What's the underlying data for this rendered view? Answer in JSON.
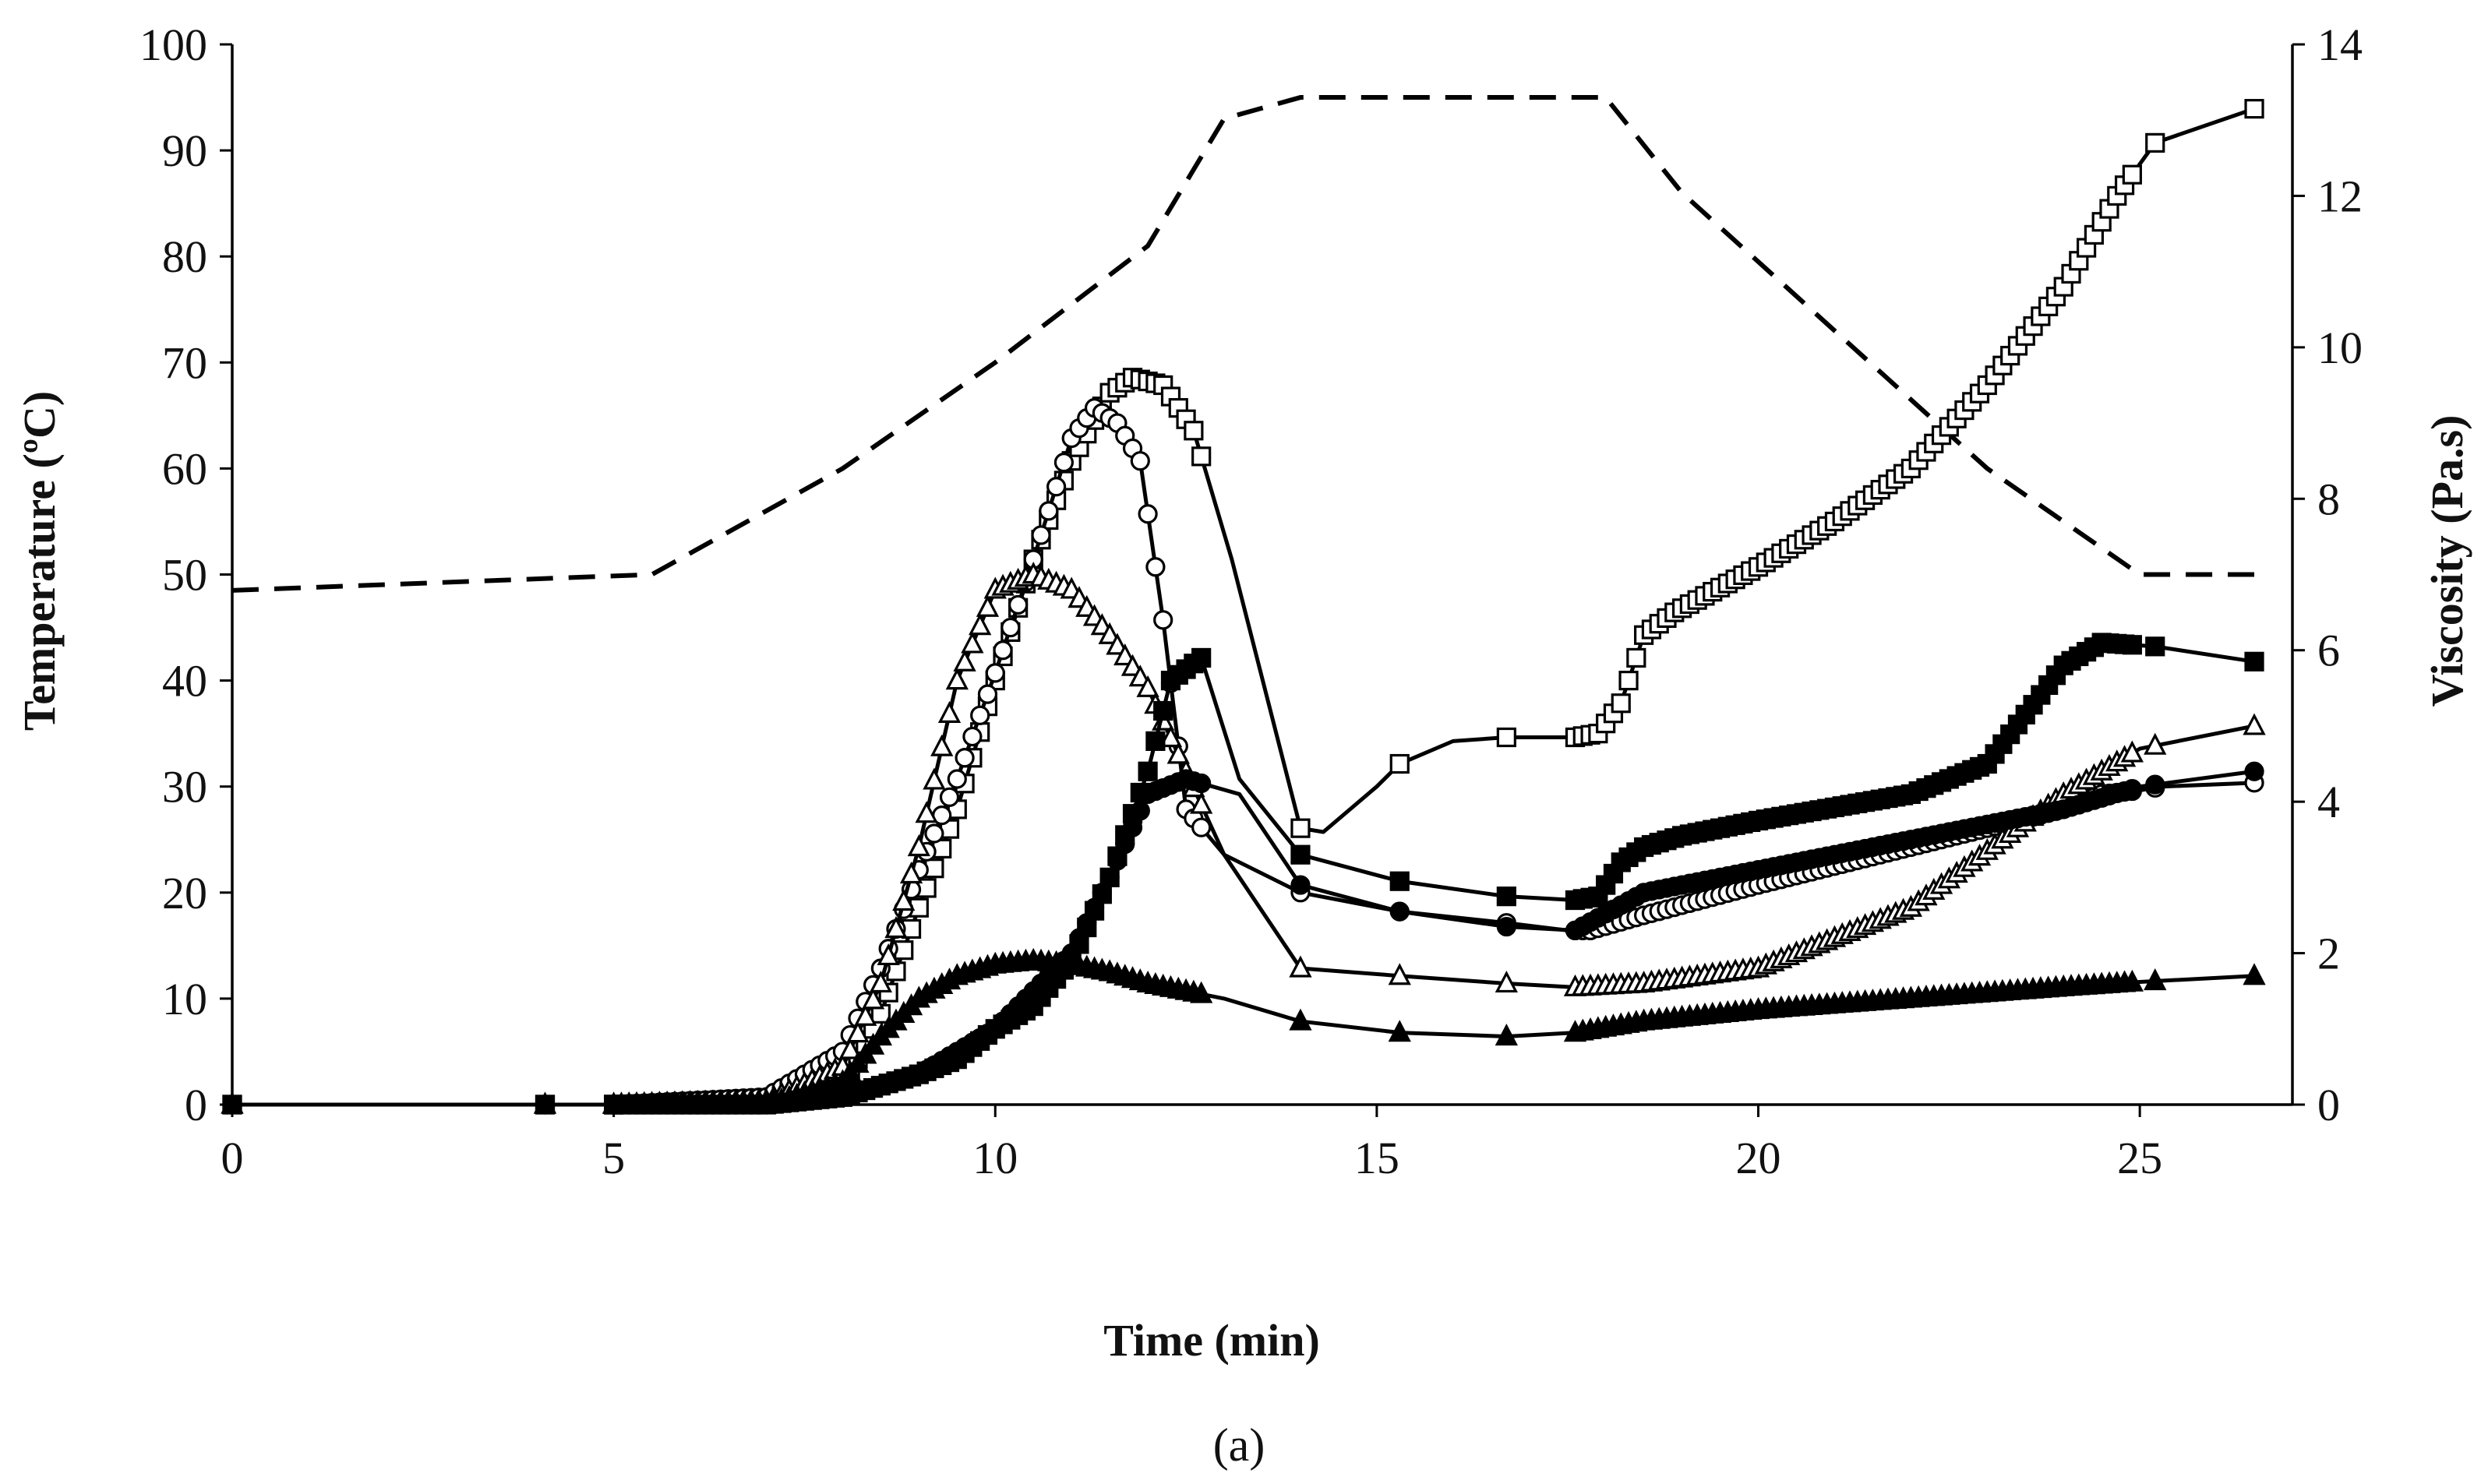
{
  "chart_data": {
    "type": "line",
    "panel_label": "(a)",
    "xlabel": "Time (min)",
    "ylabel_left": "Temperature (ºC)",
    "ylabel_right": "Viscosity (Pa.s)",
    "xlim": [
      0,
      27
    ],
    "ylim_left": [
      0,
      100
    ],
    "ylim_right": [
      0,
      14
    ],
    "x_ticks": [
      "0",
      "5",
      "10",
      "15",
      "20",
      "25"
    ],
    "y_left_ticks": [
      "0",
      "10",
      "20",
      "30",
      "40",
      "50",
      "60",
      "70",
      "80",
      "90",
      "100"
    ],
    "y_right_ticks": [
      "0",
      "2",
      "4",
      "6",
      "8",
      "10",
      "12",
      "14"
    ],
    "grid": false,
    "temperature": {
      "name": "Temperature",
      "axis": "left",
      "style": "dashed",
      "x": [
        0,
        5.5,
        8,
        10,
        12,
        13,
        14,
        16,
        18,
        19,
        21,
        23,
        25,
        26.5
      ],
      "y": [
        48.5,
        50,
        60,
        70,
        81,
        93,
        95,
        95,
        95,
        86,
        73,
        60,
        50,
        50
      ]
    },
    "series": [
      {
        "name": "open-square",
        "marker": "square-open",
        "axis": "right",
        "x": [
          0,
          5,
          7,
          8,
          8.5,
          9,
          9.5,
          10,
          10.5,
          11,
          11.5,
          11.8,
          12.2,
          12.6,
          13.1,
          14,
          14.3,
          15,
          15.3,
          16,
          16.7,
          17.6,
          17.9,
          18.2,
          18.5,
          18.9,
          20,
          21,
          22,
          23,
          24,
          24.7,
          25.2,
          26.5
        ],
        "y": [
          0,
          0,
          0.05,
          0.2,
          1.2,
          2.6,
          3.9,
          5.6,
          7.2,
          8.5,
          9.4,
          9.6,
          9.5,
          8.9,
          7.2,
          3.65,
          3.6,
          4.2,
          4.5,
          4.8,
          4.85,
          4.85,
          4.9,
          5.3,
          6.2,
          6.5,
          7.1,
          7.7,
          8.4,
          9.5,
          10.8,
          12.0,
          12.7,
          13.15
        ]
      },
      {
        "name": "open-circle",
        "marker": "circle-open",
        "axis": "right",
        "x": [
          0,
          5,
          7,
          8,
          8.5,
          9,
          9.5,
          10,
          10.5,
          11,
          11.3,
          11.6,
          11.9,
          12.2,
          12.5,
          13,
          14,
          15.3,
          16.7,
          17.5,
          17.8,
          18.5,
          20,
          22,
          24,
          24.5,
          25,
          25.3,
          26.5
        ],
        "y": [
          0,
          0,
          0.1,
          0.7,
          1.8,
          3.1,
          4.3,
          5.7,
          7.2,
          8.8,
          9.2,
          9.0,
          8.5,
          6.4,
          3.9,
          3.3,
          2.8,
          2.55,
          2.4,
          2.3,
          2.3,
          2.5,
          2.9,
          3.4,
          3.9,
          4.1,
          4.15,
          4.2,
          4.25
        ]
      },
      {
        "name": "open-triangle",
        "marker": "triangle-open",
        "axis": "right",
        "x": [
          0,
          5,
          7,
          8,
          8.5,
          9,
          9.5,
          10,
          10.5,
          11,
          11.5,
          12,
          12.5,
          13,
          14,
          15.3,
          16.7,
          17.6,
          18.5,
          20,
          22,
          24,
          25,
          26.5
        ],
        "y": [
          0,
          0,
          0.05,
          0.5,
          1.6,
          3.4,
          5.6,
          6.8,
          7.0,
          6.8,
          6.2,
          5.5,
          4.4,
          3.3,
          1.8,
          1.7,
          1.6,
          1.55,
          1.6,
          1.8,
          2.6,
          4.1,
          4.7,
          5.0
        ]
      },
      {
        "name": "filled-square",
        "marker": "square-filled",
        "axis": "right",
        "x": [
          0,
          5,
          7,
          8,
          9,
          9.5,
          10,
          10.5,
          11,
          11.5,
          12,
          12.3,
          12.7,
          13.2,
          14,
          15.3,
          16.7,
          17.6,
          17.9,
          18.2,
          18.5,
          19,
          20,
          22,
          23,
          24,
          24.5,
          25.2,
          26.5
        ],
        "y": [
          0,
          0,
          0,
          0.1,
          0.4,
          0.6,
          1.0,
          1.3,
          1.9,
          3.0,
          4.4,
          5.6,
          5.9,
          4.3,
          3.3,
          2.95,
          2.75,
          2.7,
          2.75,
          3.2,
          3.4,
          3.55,
          3.75,
          4.1,
          4.5,
          5.8,
          6.1,
          6.05,
          5.85
        ]
      },
      {
        "name": "filled-circle",
        "marker": "circle-filled",
        "axis": "right",
        "x": [
          0,
          5,
          7,
          8,
          9,
          10,
          11,
          11.5,
          12,
          12.5,
          13.2,
          14,
          15.3,
          16.7,
          17.6,
          18.5,
          20,
          22,
          24,
          25,
          26.5
        ],
        "y": [
          0,
          0,
          0,
          0.1,
          0.4,
          1.0,
          2.0,
          3.0,
          4.1,
          4.3,
          4.1,
          2.9,
          2.55,
          2.35,
          2.3,
          2.8,
          3.1,
          3.5,
          3.9,
          4.2,
          4.4
        ]
      },
      {
        "name": "filled-triangle",
        "marker": "triangle-filled",
        "axis": "right",
        "x": [
          0,
          5,
          7,
          8,
          8.5,
          9,
          9.5,
          10,
          10.5,
          11,
          11.5,
          12,
          13,
          14,
          15.3,
          16.7,
          17.6,
          18.5,
          20,
          22,
          24,
          25,
          26.5
        ],
        "y": [
          0,
          0,
          0,
          0.3,
          0.9,
          1.4,
          1.7,
          1.85,
          1.9,
          1.85,
          1.75,
          1.6,
          1.4,
          1.1,
          0.95,
          0.9,
          0.95,
          1.1,
          1.25,
          1.4,
          1.55,
          1.62,
          1.7
        ]
      }
    ]
  }
}
